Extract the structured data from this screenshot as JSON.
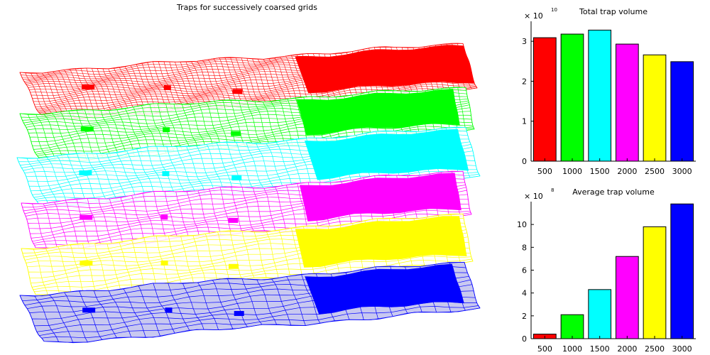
{
  "figure": {
    "title": "Traps for successively coarsed grids",
    "surface_colors": [
      "#ff0000",
      "#00ff00",
      "#00ffff",
      "#ff00ff",
      "#ffff00",
      "#0000ff"
    ],
    "bottom_fill": "#c8c8f0"
  },
  "chart_data": [
    {
      "type": "bar",
      "title": "Total trap volume",
      "categories": [
        "500",
        "1000",
        "1500",
        "2000",
        "2500",
        "3000"
      ],
      "values": [
        30900000000.0,
        31800000000.0,
        32800000000.0,
        29300000000.0,
        26600000000.0,
        24900000000.0
      ],
      "colors": [
        "#ff0000",
        "#00ff00",
        "#00ffff",
        "#ff00ff",
        "#ffff00",
        "#0000ff"
      ],
      "ylim": [
        0,
        35000000000.0
      ],
      "yticks": [
        0,
        10000000000.0,
        20000000000.0,
        30000000000.0
      ],
      "ytick_labels": [
        "0",
        "1",
        "2",
        "3"
      ],
      "exponent_label": "× 10",
      "exponent": "10",
      "grid": false
    },
    {
      "type": "bar",
      "title": "Average trap volume",
      "categories": [
        "500",
        "1000",
        "1500",
        "2000",
        "2500",
        "3000"
      ],
      "values": [
        40000000.0,
        210000000.0,
        430000000.0,
        720000000.0,
        980000000.0,
        1180000000.0
      ],
      "colors": [
        "#ff0000",
        "#00ff00",
        "#00ffff",
        "#ff00ff",
        "#ffff00",
        "#0000ff"
      ],
      "ylim": [
        0,
        1200000000.0
      ],
      "yticks": [
        0,
        200000000.0,
        400000000.0,
        600000000.0,
        800000000.0,
        1000000000.0
      ],
      "ytick_labels": [
        "0",
        "2",
        "4",
        "6",
        "8",
        "10"
      ],
      "exponent_label": "× 10",
      "exponent": "8",
      "grid": false
    }
  ]
}
